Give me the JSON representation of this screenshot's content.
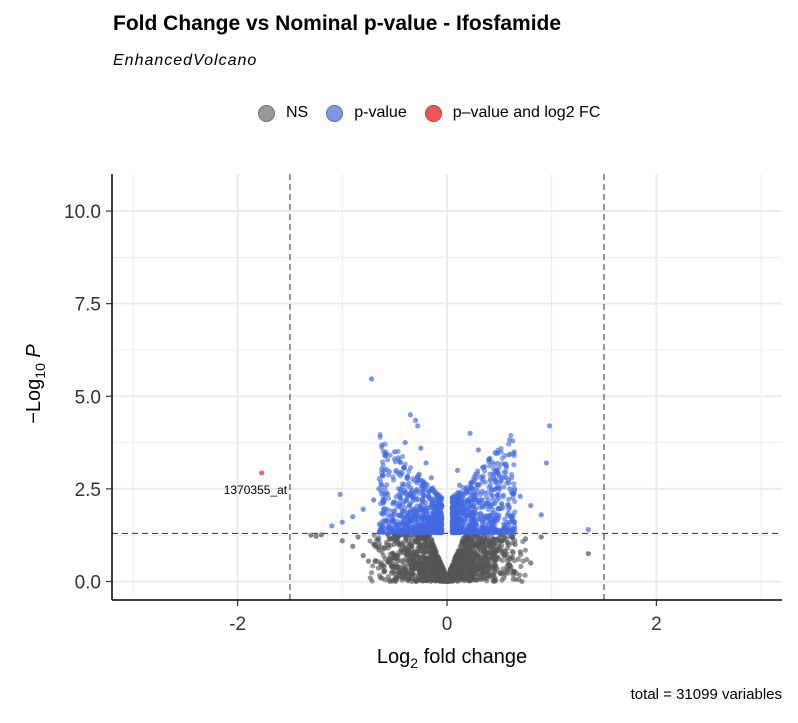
{
  "chart_data": {
    "type": "scatter",
    "title": "Fold Change vs Nominal p-value - Ifosfamide",
    "subtitle": "EnhancedVolcano",
    "caption": "total = 31099 variables",
    "xlabel": "Log2 fold change",
    "ylabel": "-Log10 P",
    "xlim": [
      -3.2,
      3.2
    ],
    "ylim": [
      -0.5,
      11
    ],
    "x_ticks": [
      -2,
      0,
      2
    ],
    "y_ticks": [
      0.0,
      2.5,
      5.0,
      7.5,
      10.0
    ],
    "x_tick_labels": [
      "-2",
      "0",
      "2"
    ],
    "y_tick_labels": [
      "0.0",
      "2.5",
      "5.0",
      "7.5",
      "10.0"
    ],
    "fc_cutoff": 1.5,
    "p_cutoff_log10": 1.3,
    "grid": true,
    "legend_position": "top",
    "legend": [
      {
        "label": "NS",
        "color": "#999999"
      },
      {
        "label": "p-value",
        "color": "#7b99e8"
      },
      {
        "label": "p–value and log2 FC",
        "color": "#f35555"
      }
    ],
    "series": [
      {
        "name": "NS",
        "color": "#555555",
        "points": [
          [
            -1.3,
            1.25
          ],
          [
            -1.25,
            1.22
          ],
          [
            -1.2,
            1.26
          ],
          [
            -1.0,
            1.1
          ],
          [
            -0.9,
            0.95
          ],
          [
            -0.85,
            1.2
          ],
          [
            -0.8,
            0.7
          ],
          [
            -0.75,
            0.55
          ],
          [
            -0.7,
            1.0
          ],
          [
            -0.65,
            0.85
          ],
          [
            -0.6,
            0.4
          ],
          [
            -0.55,
            1.15
          ],
          [
            -0.5,
            0.65
          ],
          [
            -0.45,
            0.3
          ],
          [
            -0.4,
            0.9
          ],
          [
            -0.35,
            0.2
          ],
          [
            -0.3,
            0.75
          ],
          [
            -0.25,
            0.5
          ],
          [
            -0.2,
            0.15
          ],
          [
            -0.15,
            0.6
          ],
          [
            -0.1,
            0.1
          ],
          [
            -0.05,
            0.3
          ],
          [
            0.0,
            0.05
          ],
          [
            0.05,
            0.25
          ],
          [
            0.1,
            0.12
          ],
          [
            0.15,
            0.45
          ],
          [
            0.2,
            0.7
          ],
          [
            0.25,
            0.35
          ],
          [
            0.3,
            0.95
          ],
          [
            0.35,
            0.55
          ],
          [
            0.4,
            1.1
          ],
          [
            0.45,
            0.4
          ],
          [
            0.5,
            0.85
          ],
          [
            0.55,
            1.2
          ],
          [
            0.6,
            0.6
          ],
          [
            0.65,
            1.0
          ],
          [
            0.7,
            0.8
          ],
          [
            0.75,
            1.15
          ],
          [
            0.8,
            0.5
          ],
          [
            0.9,
            1.2
          ],
          [
            1.35,
            0.75
          ]
        ]
      },
      {
        "name": "p-value",
        "color": "#4169e1",
        "points": [
          [
            -0.72,
            5.47
          ],
          [
            -0.35,
            4.5
          ],
          [
            -0.3,
            4.35
          ],
          [
            -0.28,
            4.2
          ],
          [
            -0.4,
            3.75
          ],
          [
            -0.5,
            3.5
          ],
          [
            -0.6,
            3.0
          ],
          [
            -0.65,
            2.5
          ],
          [
            -0.7,
            2.2
          ],
          [
            -0.8,
            1.95
          ],
          [
            -0.9,
            1.75
          ],
          [
            -1.0,
            1.6
          ],
          [
            -1.02,
            2.35
          ],
          [
            -1.1,
            1.5
          ],
          [
            -0.25,
            3.6
          ],
          [
            -0.2,
            3.2
          ],
          [
            -0.15,
            2.8
          ],
          [
            -0.12,
            2.4
          ],
          [
            -0.1,
            2.0
          ],
          [
            -0.08,
            1.7
          ],
          [
            -0.06,
            1.45
          ],
          [
            0.22,
            4.0
          ],
          [
            0.3,
            3.55
          ],
          [
            0.4,
            3.3
          ],
          [
            0.5,
            2.85
          ],
          [
            0.6,
            2.5
          ],
          [
            0.7,
            2.3
          ],
          [
            0.8,
            2.05
          ],
          [
            0.9,
            1.8
          ],
          [
            0.98,
            4.2
          ],
          [
            0.95,
            3.2
          ],
          [
            0.1,
            3.0
          ],
          [
            0.12,
            2.6
          ],
          [
            0.14,
            2.2
          ],
          [
            0.08,
            1.8
          ],
          [
            0.06,
            1.5
          ],
          [
            1.35,
            1.4
          ]
        ]
      },
      {
        "name": "p–value and log2 FC",
        "color": "#e8262d",
        "points": [
          [
            -1.77,
            2.93
          ]
        ]
      }
    ],
    "annotations": [
      {
        "text": "1370355_at",
        "x": -1.77,
        "y": 2.93
      }
    ]
  }
}
